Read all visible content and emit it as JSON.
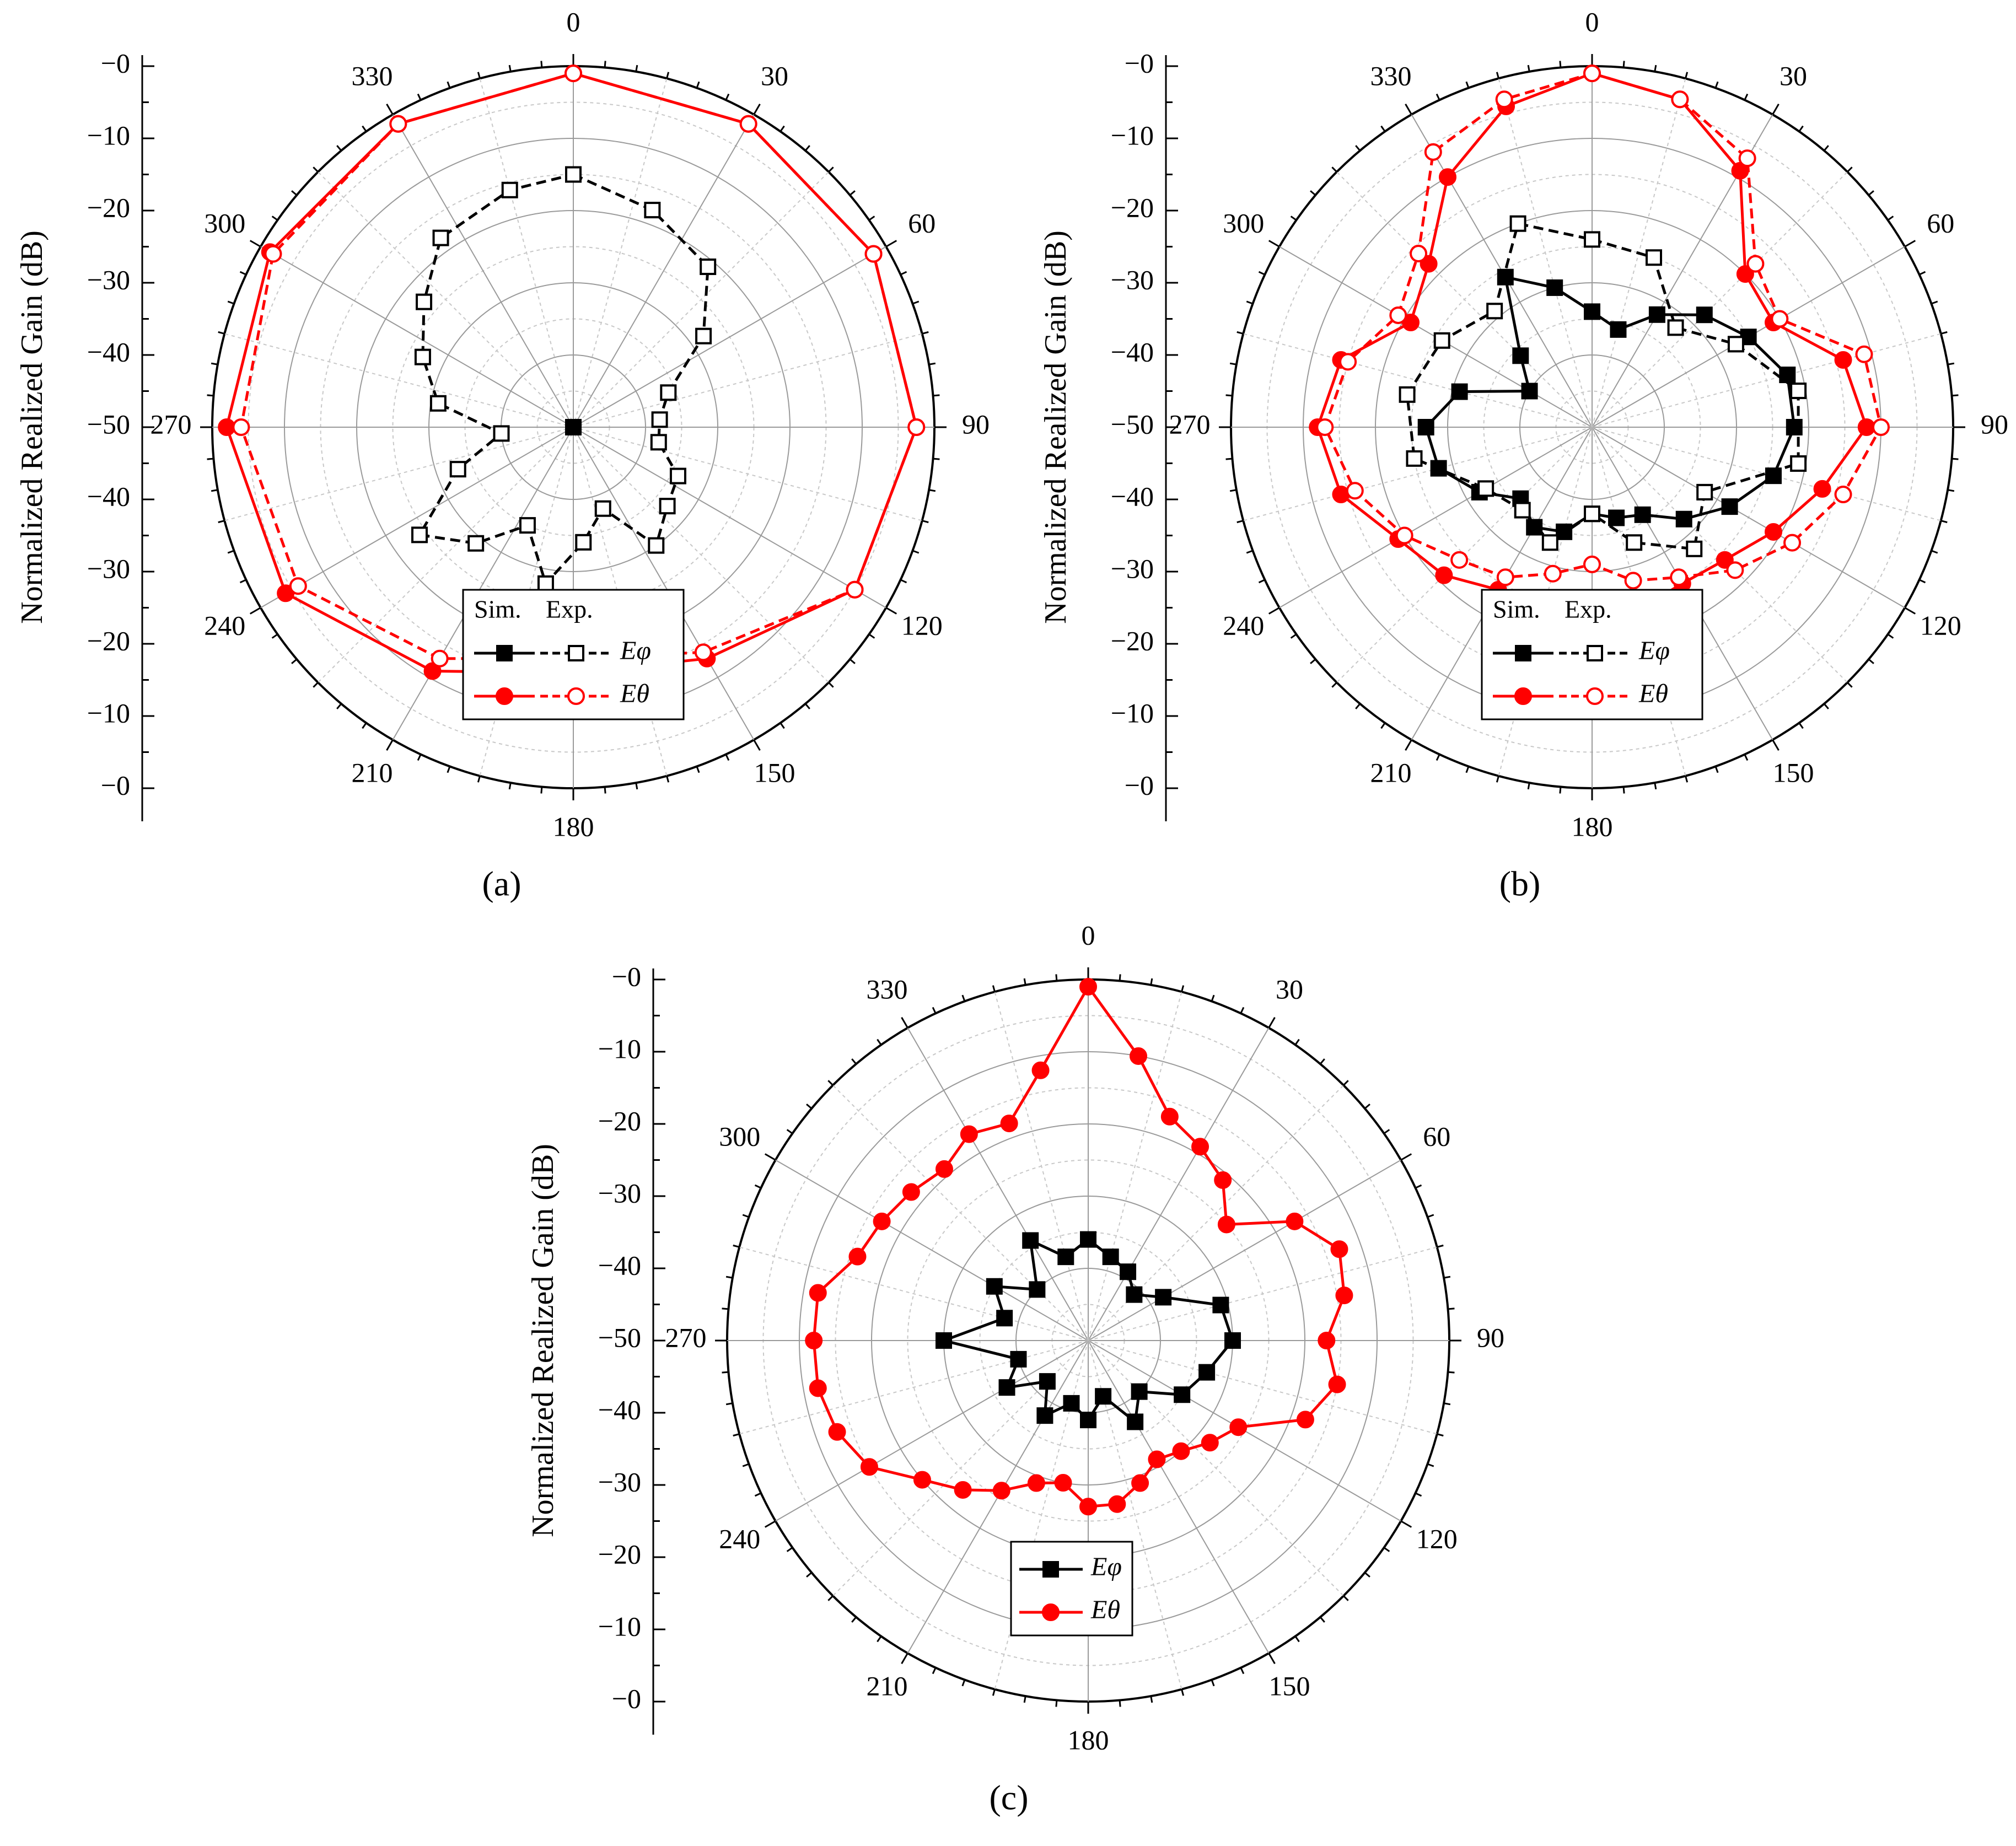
{
  "figure": {
    "panels": [
      {
        "id": "a",
        "caption": "(a)"
      },
      {
        "id": "b",
        "caption": "(b)"
      },
      {
        "id": "c",
        "caption": "(c)"
      }
    ]
  },
  "colors": {
    "black_series": "#000000",
    "red_series": "#ff0000",
    "grid": "#b0b0b0"
  },
  "chart_data": [
    {
      "type": "polar-line",
      "panel": "a",
      "ylabel": "Normalized Realized Gain (dB)",
      "r_tick_labels": [
        "−0",
        "−10",
        "−20",
        "−30",
        "−40",
        "−50",
        "−40",
        "−30",
        "−20",
        "−10",
        "−0"
      ],
      "r_range_db": [
        -50,
        0
      ],
      "angle_tick_labels": [
        "0",
        "30",
        "60",
        "90",
        "120",
        "150",
        "180",
        "210",
        "240",
        "270",
        "300",
        "330"
      ],
      "legend": {
        "header": [
          "Sim.",
          "Exp."
        ],
        "entries": [
          "E_φ",
          "E_θ"
        ],
        "placement": "bottom-center"
      },
      "series": [
        {
          "name": "E_φ Sim.",
          "color": "#000000",
          "marker": "filled-square",
          "line": "solid",
          "angles": [
            0,
            30,
            60,
            90,
            120,
            150,
            180,
            210,
            240,
            270,
            300,
            330
          ],
          "values": [
            -50,
            -50,
            -50,
            -50,
            -50,
            -50,
            -50,
            -50,
            -50,
            -50,
            -50,
            -50
          ]
        },
        {
          "name": "E_φ Exp.",
          "color": "#000000",
          "marker": "open-square",
          "line": "dashed",
          "angles": [
            0,
            20,
            40,
            55,
            70,
            85,
            100,
            115,
            130,
            145,
            160,
            175,
            190,
            205,
            220,
            235,
            250,
            265,
            280,
            295,
            310,
            325,
            345
          ],
          "values": [
            -15,
            -18,
            -21,
            -28,
            -36,
            -38,
            -38,
            -34,
            -33,
            -30,
            -38,
            -34,
            -28,
            -35,
            -29,
            -24,
            -33,
            -40,
            -31,
            -27,
            -23,
            -18,
            -16
          ]
        },
        {
          "name": "E_θ Sim.",
          "color": "#ff0000",
          "marker": "filled-circle",
          "line": "solid",
          "angles": [
            0,
            30,
            60,
            90,
            120,
            150,
            180,
            210,
            240,
            270,
            300,
            330
          ],
          "values": [
            -1,
            -1.5,
            -2,
            -2.5,
            -5,
            -13,
            -16,
            -11,
            -4,
            -2,
            -1.5,
            -1.5
          ]
        },
        {
          "name": "E_θ Exp.",
          "color": "#ff0000",
          "marker": "open-circle",
          "line": "dashed",
          "angles": [
            0,
            30,
            60,
            90,
            120,
            150,
            180,
            210,
            240,
            270,
            300,
            330
          ],
          "values": [
            -1,
            -1.5,
            -2,
            -2.5,
            -5,
            -14,
            -18,
            -13,
            -6,
            -4,
            -2,
            -1.5
          ]
        }
      ]
    },
    {
      "type": "polar-line",
      "panel": "b",
      "ylabel": "Normalized Realized Gain (dB)",
      "r_tick_labels": [
        "−0",
        "−10",
        "−20",
        "−30",
        "−40",
        "−50",
        "−40",
        "−30",
        "−20",
        "−10",
        "−0"
      ],
      "r_range_db": [
        -50,
        0
      ],
      "angle_tick_labels": [
        "0",
        "30",
        "60",
        "90",
        "120",
        "150",
        "180",
        "210",
        "240",
        "270",
        "300",
        "330"
      ],
      "legend": {
        "header": [
          "Sim.",
          "Exp."
        ],
        "entries": [
          "E_φ",
          "E_θ"
        ],
        "placement": "bottom-center"
      },
      "series": [
        {
          "name": "E_φ Sim.",
          "color": "#000000",
          "marker": "filled-square",
          "line": "solid",
          "angles": [
            0,
            15,
            30,
            45,
            60,
            75,
            90,
            105,
            120,
            135,
            150,
            165,
            180,
            195,
            210,
            225,
            240,
            255,
            270,
            285,
            300,
            315,
            330,
            345
          ],
          "values": [
            -34,
            -36,
            -32,
            -28,
            -25,
            -22,
            -22,
            -24,
            -28,
            -32,
            -36,
            -37,
            -38,
            -35,
            -34,
            -36,
            -32,
            -28,
            -27,
            -31,
            -40,
            -36,
            -26,
            -30
          ]
        },
        {
          "name": "E_φ Exp.",
          "color": "#000000",
          "marker": "open-square",
          "line": "dashed",
          "angles": [
            0,
            20,
            40,
            60,
            80,
            100,
            120,
            140,
            160,
            180,
            200,
            220,
            240,
            260,
            280,
            300,
            320,
            340
          ],
          "values": [
            -24,
            -25,
            -32,
            -27,
            -21,
            -21,
            -32,
            -28,
            -33,
            -38,
            -33,
            -35,
            -33,
            -25,
            -24,
            -26,
            -29,
            -20
          ]
        },
        {
          "name": "E_θ Sim.",
          "color": "#ff0000",
          "marker": "filled-circle",
          "line": "solid",
          "angles": [
            0,
            15,
            30,
            45,
            60,
            75,
            90,
            105,
            120,
            135,
            150,
            165,
            180,
            195,
            210,
            225,
            240,
            255,
            270,
            285,
            300,
            315,
            330,
            345
          ],
          "values": [
            -1,
            -3,
            -9,
            -20,
            -21,
            -14,
            -12,
            -17,
            -21,
            -24,
            -25,
            -24,
            -23,
            -25,
            -24,
            -21,
            -19,
            -14,
            -12,
            -14,
            -21,
            -18,
            -10,
            -4
          ]
        },
        {
          "name": "E_θ Exp.",
          "color": "#ff0000",
          "marker": "open-circle",
          "line": "dashed",
          "angles": [
            0,
            15,
            30,
            45,
            60,
            75,
            90,
            105,
            120,
            135,
            150,
            165,
            180,
            195,
            210,
            225,
            240,
            255,
            270,
            285,
            300,
            315,
            330,
            345
          ],
          "values": [
            -1,
            -3,
            -7,
            -18,
            -20,
            -11,
            -10,
            -14,
            -18,
            -22,
            -26,
            -28,
            -31,
            -29,
            -26,
            -24,
            -20,
            -16,
            -13,
            -15,
            -19,
            -16,
            -6,
            -3
          ]
        }
      ]
    },
    {
      "type": "polar-line",
      "panel": "c",
      "ylabel": "Normalized Realized Gain (dB)",
      "r_tick_labels": [
        "−0",
        "−10",
        "−20",
        "−30",
        "−40",
        "−50",
        "−40",
        "−30",
        "−20",
        "−10",
        "−0"
      ],
      "r_range_db": [
        -50,
        0
      ],
      "angle_tick_labels": [
        "0",
        "30",
        "60",
        "90",
        "120",
        "150",
        "180",
        "210",
        "240",
        "270",
        "300",
        "330"
      ],
      "legend": {
        "entries": [
          "E_φ",
          "E_θ"
        ],
        "placement": "bottom-center"
      },
      "series": [
        {
          "name": "E_φ",
          "color": "#000000",
          "marker": "filled-square",
          "line": "solid",
          "angles": [
            0,
            15,
            30,
            45,
            60,
            75,
            90,
            105,
            120,
            135,
            150,
            165,
            180,
            195,
            210,
            225,
            240,
            255,
            270,
            285,
            300,
            315,
            330,
            345
          ],
          "values": [
            -36,
            -38,
            -39,
            -41,
            -38,
            -31,
            -30,
            -33,
            -35,
            -40,
            -37,
            -42,
            -39,
            -41,
            -38,
            -42,
            -37,
            -40,
            -30,
            -38,
            -35,
            -40,
            -34,
            -38
          ]
        },
        {
          "name": "E_θ",
          "color": "#ff0000",
          "marker": "filled-circle",
          "line": "solid",
          "angles": [
            0,
            10,
            20,
            30,
            40,
            50,
            60,
            70,
            80,
            90,
            100,
            110,
            120,
            130,
            140,
            150,
            160,
            170,
            180,
            190,
            200,
            210,
            220,
            230,
            240,
            250,
            260,
            270,
            280,
            290,
            300,
            310,
            320,
            330,
            340,
            350
          ],
          "values": [
            -1,
            -10,
            -17,
            -19,
            -21,
            -25,
            -17,
            -13,
            -14,
            -17,
            -15,
            -18,
            -26,
            -28,
            -30,
            -31,
            -29,
            -27,
            -27,
            -30,
            -29,
            -26,
            -23,
            -20,
            -15,
            -13,
            -12,
            -12,
            -12,
            -16,
            -17,
            -18,
            -19,
            -17,
            -18,
            -12
          ]
        }
      ]
    }
  ]
}
